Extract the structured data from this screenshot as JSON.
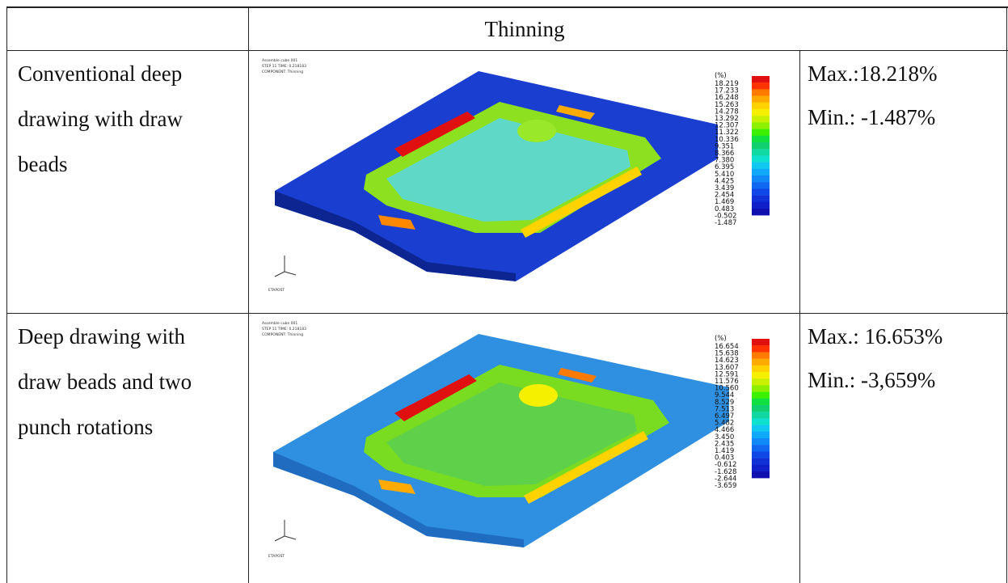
{
  "table": {
    "header": "Thinning",
    "rows": [
      {
        "method": [
          "Conventional deep",
          "drawing with draw",
          "beads"
        ],
        "max": "Max.:18.218%",
        "min": "Min.: -1.487%",
        "sim": {
          "caption_lines": [
            "Assemble cube 001",
            "STEP 11   TIME:   0.218183",
            "COMPONENT: Thinning"
          ],
          "unit": "(%)",
          "legend_values": [
            "18.219",
            "17.233",
            "16.248",
            "15.263",
            "14.278",
            "13.292",
            "12.307",
            "11.322",
            "10.336",
            "9.351",
            "8.366",
            "7.380",
            "6.395",
            "5.410",
            "4.425",
            "3.439",
            "2.454",
            "1.469",
            "0.483",
            "-0.502",
            "-1.487"
          ],
          "footer": "ETAPOST",
          "flange_color": "#1a3fd0"
        }
      },
      {
        "method": [
          "Deep drawing with",
          "draw beads and two",
          "punch rotations"
        ],
        "max": "Max.: 16.653%",
        "min": "Min.: -3,659%",
        "sim": {
          "caption_lines": [
            "Assemble cube 001",
            "STEP 11   TIME:   0.218183",
            "COMPONENT: Thinning"
          ],
          "unit": "(%)",
          "legend_values": [
            "16.654",
            "15.638",
            "14.623",
            "13.607",
            "12.591",
            "11.576",
            "10.560",
            "9.544",
            "8.529",
            "7.513",
            "6.497",
            "5.482",
            "4.466",
            "3.450",
            "2.435",
            "1.419",
            "0.403",
            "-0.612",
            "-1.628",
            "-2.644",
            "-3.659"
          ],
          "footer": "ETAPOST",
          "flange_color": "#2f8fe0"
        }
      }
    ]
  },
  "legend_colors": [
    "#e01010",
    "#ff3300",
    "#ff7a00",
    "#ffaa00",
    "#ffd200",
    "#f4f000",
    "#c8f000",
    "#8cf000",
    "#3cf000",
    "#10e040",
    "#10d070",
    "#10d8a0",
    "#10e0d0",
    "#10c8f0",
    "#10a8f8",
    "#1088f8",
    "#1068f0",
    "#1048e8",
    "#1030d8",
    "#1020c8",
    "#1010b0"
  ]
}
